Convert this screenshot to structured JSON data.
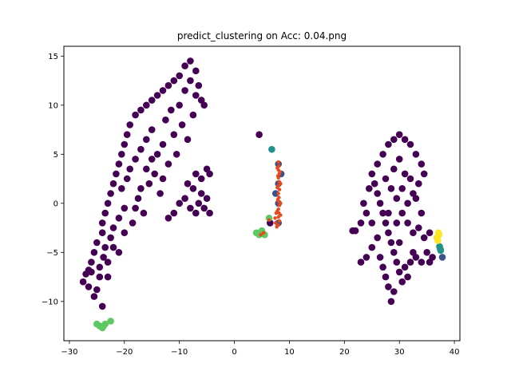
{
  "chart_data": {
    "type": "scatter",
    "title": "predict_clustering on  Acc: 0.04.png",
    "xlabel": "",
    "ylabel": "",
    "xlim": [
      -31,
      41
    ],
    "ylim": [
      -14,
      16
    ],
    "xticks": [
      -30,
      -20,
      -10,
      0,
      10,
      20,
      30,
      40
    ],
    "yticks": [
      -10,
      -5,
      0,
      5,
      10,
      15
    ],
    "xtick_labels": [
      "−30",
      "−20",
      "−10",
      "0",
      "10",
      "20",
      "30",
      "40"
    ],
    "ytick_labels": [
      "−10",
      "−5",
      "0",
      "5",
      "10",
      "15"
    ],
    "grid": false,
    "legend": "none",
    "series": [
      {
        "color": "#440154",
        "points": [
          [
            -27.5,
            -8.0
          ],
          [
            -27.0,
            -7.2
          ],
          [
            -26.5,
            -8.5
          ],
          [
            -26.0,
            -7.0
          ],
          [
            -26.0,
            -6.0
          ],
          [
            -25.5,
            -5.0
          ],
          [
            -25.0,
            -4.0
          ],
          [
            -25.0,
            -8.8
          ],
          [
            -24.5,
            -6.5
          ],
          [
            -24.5,
            -7.5
          ],
          [
            -24.0,
            -3.0
          ],
          [
            -24.0,
            -2.0
          ],
          [
            -23.8,
            -5.5
          ],
          [
            -23.5,
            -1.0
          ],
          [
            -23.5,
            -4.5
          ],
          [
            -23.0,
            0.0
          ],
          [
            -23.0,
            -6.0
          ],
          [
            -22.5,
            1.0
          ],
          [
            -22.5,
            -3.5
          ],
          [
            -22.0,
            2.0
          ],
          [
            -22.0,
            -2.5
          ],
          [
            -21.5,
            3.0
          ],
          [
            -21.0,
            -1.5
          ],
          [
            -21.0,
            4.0
          ],
          [
            -20.5,
            5.0
          ],
          [
            -20.5,
            1.5
          ],
          [
            -20.0,
            6.0
          ],
          [
            -20.0,
            -0.5
          ],
          [
            -19.5,
            7.0
          ],
          [
            -19.5,
            2.5
          ],
          [
            -19.0,
            8.0
          ],
          [
            -19.0,
            3.5
          ],
          [
            -18.5,
            -2.0
          ],
          [
            -18.0,
            9.0
          ],
          [
            -18.0,
            4.5
          ],
          [
            -17.5,
            0.5
          ],
          [
            -17.0,
            9.5
          ],
          [
            -17.0,
            5.5
          ],
          [
            -16.5,
            -1.0
          ],
          [
            -16.0,
            10.0
          ],
          [
            -16.0,
            6.5
          ],
          [
            -15.5,
            2.0
          ],
          [
            -15.0,
            10.5
          ],
          [
            -15.0,
            7.5
          ],
          [
            -14.5,
            3.0
          ],
          [
            -14.0,
            11.0
          ],
          [
            -14.0,
            5.0
          ],
          [
            -13.5,
            1.0
          ],
          [
            -13.0,
            11.5
          ],
          [
            -13.0,
            6.0
          ],
          [
            -12.5,
            8.5
          ],
          [
            -12.0,
            12.0
          ],
          [
            -12.0,
            4.0
          ],
          [
            -11.5,
            9.5
          ],
          [
            -11.0,
            12.5
          ],
          [
            -11.0,
            7.0
          ],
          [
            -10.5,
            5.0
          ],
          [
            -10.0,
            13.0
          ],
          [
            -10.0,
            10.0
          ],
          [
            -9.5,
            8.0
          ],
          [
            -9.0,
            14.0
          ],
          [
            -9.0,
            11.5
          ],
          [
            -8.5,
            6.5
          ],
          [
            -8.0,
            14.5
          ],
          [
            -8.0,
            12.5
          ],
          [
            -7.5,
            9.0
          ],
          [
            -7.0,
            13.5
          ],
          [
            -7.0,
            11.0
          ],
          [
            -6.5,
            12.0
          ],
          [
            -6.0,
            10.5
          ],
          [
            -8.5,
            2.0
          ],
          [
            -9.0,
            0.5
          ],
          [
            -8.0,
            -0.5
          ],
          [
            -7.5,
            1.5
          ],
          [
            -7.0,
            -1.0
          ],
          [
            -6.5,
            0.0
          ],
          [
            -6.0,
            1.0
          ],
          [
            -5.5,
            -0.5
          ],
          [
            -5.0,
            0.5
          ],
          [
            -4.5,
            -1.0
          ],
          [
            -4.5,
            3.0
          ],
          [
            -5.0,
            3.5
          ],
          [
            -6.0,
            2.5
          ],
          [
            -7.0,
            3.0
          ],
          [
            -10.0,
            0.0
          ],
          [
            -11.0,
            -1.0
          ],
          [
            -12.0,
            -1.5
          ],
          [
            -5.5,
            10.0
          ],
          [
            -24.0,
            -10.5
          ],
          [
            -25.5,
            -9.5
          ],
          [
            -22.0,
            -4.5
          ],
          [
            -20.0,
            -3.0
          ],
          [
            -18.0,
            -0.5
          ],
          [
            -17.0,
            1.5
          ],
          [
            -16.0,
            3.5
          ],
          [
            -15.0,
            4.5
          ],
          [
            -13.0,
            2.5
          ],
          [
            -21.0,
            -5.0
          ],
          [
            -23.0,
            -7.5
          ],
          [
            -26.5,
            -6.8
          ],
          [
            4.5,
            7.0
          ],
          [
            6.5,
            -2.0
          ],
          [
            25.0,
            3.0
          ],
          [
            25.5,
            2.0
          ],
          [
            26.0,
            1.0
          ],
          [
            26.5,
            0.0
          ],
          [
            27.0,
            -1.0
          ],
          [
            27.5,
            -2.0
          ],
          [
            28.0,
            -3.0
          ],
          [
            28.5,
            -4.0
          ],
          [
            29.0,
            -5.0
          ],
          [
            29.5,
            -6.0
          ],
          [
            30.0,
            -7.0
          ],
          [
            30.5,
            -8.0
          ],
          [
            29.0,
            -9.0
          ],
          [
            28.5,
            -10.0
          ],
          [
            28.0,
            -8.5
          ],
          [
            27.5,
            -7.5
          ],
          [
            27.0,
            -6.5
          ],
          [
            26.5,
            -5.5
          ],
          [
            31.0,
            -6.5
          ],
          [
            31.5,
            -7.5
          ],
          [
            32.0,
            -6.0
          ],
          [
            32.5,
            -5.0
          ],
          [
            33.0,
            -5.5
          ],
          [
            34.0,
            -6.0
          ],
          [
            35.0,
            -5.0
          ],
          [
            35.5,
            -6.0
          ],
          [
            36.0,
            -5.5
          ],
          [
            25.0,
            -2.0
          ],
          [
            24.0,
            -1.0
          ],
          [
            23.5,
            0.0
          ],
          [
            24.5,
            1.5
          ],
          [
            26.0,
            4.0
          ],
          [
            27.0,
            5.0
          ],
          [
            28.0,
            6.0
          ],
          [
            29.0,
            6.5
          ],
          [
            30.0,
            7.0
          ],
          [
            31.0,
            6.5
          ],
          [
            32.0,
            6.0
          ],
          [
            33.0,
            5.0
          ],
          [
            34.0,
            4.0
          ],
          [
            34.5,
            3.0
          ],
          [
            33.5,
            2.0
          ],
          [
            32.5,
            1.0
          ],
          [
            31.5,
            0.0
          ],
          [
            30.5,
            -1.0
          ],
          [
            29.5,
            -2.0
          ],
          [
            28.5,
            1.5
          ],
          [
            27.5,
            2.5
          ],
          [
            29.0,
            3.5
          ],
          [
            30.0,
            4.5
          ],
          [
            31.0,
            3.0
          ],
          [
            32.0,
            2.5
          ],
          [
            33.0,
            0.5
          ],
          [
            34.0,
            -1.0
          ],
          [
            33.5,
            -2.5
          ],
          [
            32.5,
            -3.0
          ],
          [
            31.5,
            -2.0
          ],
          [
            30.5,
            1.5
          ],
          [
            26.0,
            -3.5
          ],
          [
            25.0,
            -4.5
          ],
          [
            24.0,
            -5.5
          ],
          [
            23.0,
            -2.0
          ],
          [
            22.0,
            -2.8
          ],
          [
            21.5,
            -2.8
          ],
          [
            23.0,
            -6.0
          ],
          [
            35.5,
            -3.0
          ],
          [
            34.5,
            -3.5
          ],
          [
            28.0,
            -1.0
          ],
          [
            29.5,
            0.5
          ],
          [
            30.0,
            -4.0
          ]
        ]
      },
      {
        "color": "#3b528b",
        "points": [
          [
            8.0,
            4.0
          ],
          [
            8.0,
            2.0
          ],
          [
            8.0,
            0.0
          ],
          [
            8.0,
            -2.0
          ],
          [
            7.5,
            1.0
          ],
          [
            8.5,
            3.0
          ],
          [
            37.8,
            -5.5
          ]
        ]
      },
      {
        "color": "#21918c",
        "points": [
          [
            37.3,
            -4.4
          ],
          [
            37.5,
            -4.8
          ],
          [
            37.4,
            -4.6
          ],
          [
            6.8,
            5.5
          ]
        ]
      },
      {
        "color": "#5ec962",
        "points": [
          [
            -24.5,
            -12.5
          ],
          [
            -24.0,
            -12.7
          ],
          [
            -23.5,
            -12.3
          ],
          [
            -22.5,
            -12.0
          ],
          [
            -25.0,
            -12.3
          ],
          [
            -23.8,
            -12.5
          ],
          [
            4.0,
            -3.0
          ],
          [
            4.5,
            -3.2
          ],
          [
            5.0,
            -2.8
          ],
          [
            5.5,
            -3.2
          ],
          [
            6.3,
            -1.5
          ]
        ]
      },
      {
        "color": "#fde725",
        "points": [
          [
            37.2,
            -3.2
          ],
          [
            37.0,
            -3.8
          ],
          [
            36.8,
            -3.5
          ],
          [
            37.1,
            -3.0
          ]
        ]
      },
      {
        "color": "#e84a1c",
        "points": [
          [
            8.0,
            4.2
          ],
          [
            8.1,
            3.8
          ],
          [
            8.0,
            3.4
          ],
          [
            8.2,
            3.0
          ],
          [
            8.0,
            2.6
          ],
          [
            8.1,
            2.2
          ],
          [
            8.0,
            1.8
          ],
          [
            8.2,
            1.4
          ],
          [
            8.0,
            1.0
          ],
          [
            8.1,
            0.6
          ],
          [
            8.0,
            0.2
          ],
          [
            8.2,
            -0.2
          ],
          [
            8.0,
            -0.6
          ],
          [
            8.1,
            -1.0
          ],
          [
            8.0,
            -1.4
          ],
          [
            8.2,
            -1.8
          ],
          [
            8.0,
            -2.2
          ],
          [
            7.7,
            -2.4
          ],
          [
            7.5,
            -2.0
          ],
          [
            7.4,
            -1.5
          ],
          [
            7.8,
            3.6
          ],
          [
            7.9,
            2.8
          ],
          [
            7.8,
            1.6
          ],
          [
            7.9,
            0.4
          ],
          [
            7.8,
            -0.8
          ],
          [
            8.4,
            2.0
          ],
          [
            8.4,
            0.0
          ],
          [
            8.4,
            -1.2
          ],
          [
            8.3,
            3.2
          ],
          [
            7.6,
            -1.0
          ],
          [
            4.8,
            -3.2
          ],
          [
            5.3,
            -3.0
          ],
          [
            6.3,
            -1.7
          ]
        ]
      }
    ]
  }
}
